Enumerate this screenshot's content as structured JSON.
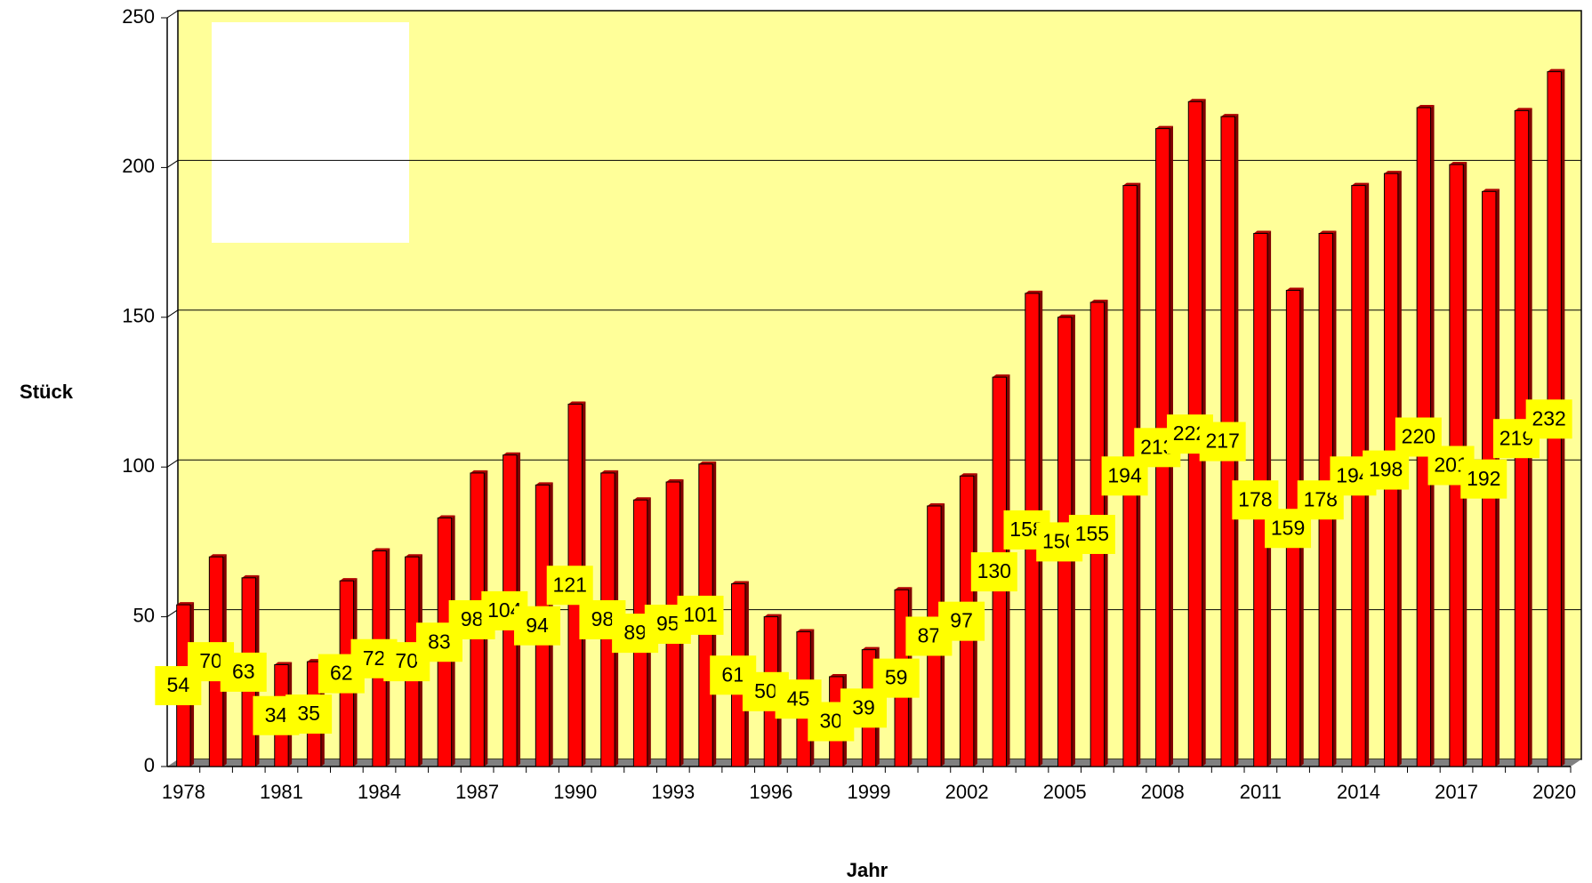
{
  "chart_data": {
    "type": "bar",
    "x_label": "Jahr",
    "y_label": "Stück",
    "categories": [
      "1978",
      null,
      null,
      "1981",
      null,
      null,
      "1984",
      null,
      null,
      "1987",
      null,
      null,
      "1990",
      null,
      null,
      "1993",
      null,
      null,
      "1996",
      null,
      null,
      "1999",
      null,
      null,
      "2002",
      null,
      null,
      "2005",
      null,
      null,
      "2008",
      null,
      null,
      "2011",
      null,
      null,
      "2014",
      null,
      null,
      "2017",
      null,
      null,
      "2020"
    ],
    "values": [
      54,
      70,
      63,
      34,
      35,
      62,
      72,
      70,
      83,
      98,
      104,
      94,
      121,
      98,
      89,
      95,
      101,
      61,
      50,
      45,
      30,
      39,
      59,
      87,
      97,
      130,
      158,
      150,
      155,
      194,
      213,
      222,
      217,
      178,
      159,
      178,
      194,
      198,
      220,
      201,
      192,
      219,
      232
    ],
    "color": "#ff0000",
    "ylim": [
      0,
      250
    ],
    "yticks": [
      0,
      50,
      100,
      150,
      200,
      250
    ],
    "grid": true
  }
}
